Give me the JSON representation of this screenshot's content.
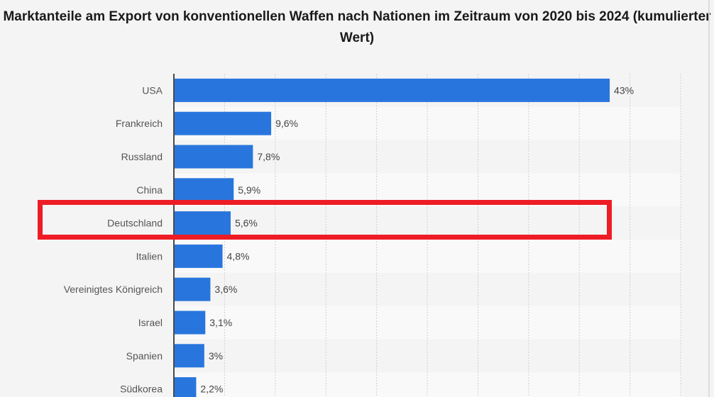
{
  "chart_data": {
    "type": "bar",
    "orientation": "horizontal",
    "title": "Marktanteile am Export von konventionellen Waffen nach Nationen im Zeitraum von 2020 bis 2024 (kumulierter Wert)",
    "categories": [
      "USA",
      "Frankreich",
      "Russland",
      "China",
      "Deutschland",
      "Italien",
      "Vereinigtes Königreich",
      "Israel",
      "Spanien",
      "Südkorea"
    ],
    "values": [
      43,
      9.6,
      7.8,
      5.9,
      5.6,
      4.8,
      3.6,
      3.1,
      3,
      2.2
    ],
    "value_labels": [
      "43%",
      "9,6%",
      "7,8%",
      "5,9%",
      "5,6%",
      "4,8%",
      "3,6%",
      "3,1%",
      "3%",
      "2,2%"
    ],
    "xlim": [
      0,
      50
    ],
    "grid_step": 5,
    "unit": "%",
    "highlighted_category": "Deutschland",
    "colors": {
      "bar": "#2876dd",
      "highlight": "#ee1c25"
    }
  }
}
